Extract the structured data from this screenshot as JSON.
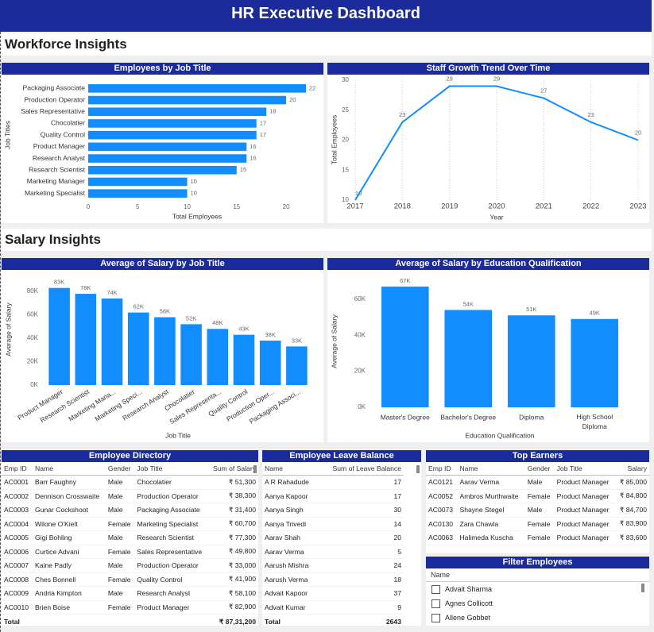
{
  "header": {
    "title": "HR Executive Dashboard"
  },
  "sections": [
    "Workforce Insights",
    "Salary Insights"
  ],
  "chart_data": [
    {
      "type": "bar",
      "orientation": "horizontal",
      "title": "Employees by Job Title",
      "categories": [
        "Packaging Associate",
        "Production Operator",
        "Sales Representative",
        "Chocolatier",
        "Quality Control",
        "Product Manager",
        "Research Analyst",
        "Research Scientist",
        "Marketing Manager",
        "Marketing Specialist"
      ],
      "values": [
        22,
        20,
        18,
        17,
        17,
        16,
        16,
        15,
        10,
        10
      ],
      "color": "#118dff",
      "xlim": [
        0,
        22
      ],
      "xticks": [
        0,
        5,
        10,
        15,
        20
      ],
      "xlabel": "Total Employees",
      "ylabel": "Job Titles"
    },
    {
      "type": "line",
      "title": "Staff Growth Trend Over Time",
      "x": [
        2017,
        2018,
        2019,
        2020,
        2021,
        2022,
        2023
      ],
      "values": [
        10,
        23,
        29,
        29,
        27,
        23,
        20
      ],
      "color": "#118dff",
      "xlim": [
        2017,
        2023
      ],
      "xticks": [
        2017,
        2018,
        2019,
        2020,
        2021,
        2022,
        2023
      ],
      "ylim": [
        10,
        30
      ],
      "yticks": [
        10,
        15,
        20,
        25,
        30
      ],
      "grid": true,
      "xlabel": "Year",
      "ylabel": "Total Employees"
    },
    {
      "type": "bar",
      "title": "Average of Salary by Job Title",
      "categories": [
        "Product Manager",
        "Research Scientist",
        "Marketing Mana...",
        "Marketing Speci...",
        "Research Analyst",
        "Chocolatier",
        "Sales Representa...",
        "Quality Control",
        "Production Oper...",
        "Packaging Associ..."
      ],
      "values": [
        83000,
        78000,
        74000,
        62000,
        58000,
        52000,
        48000,
        43000,
        38000,
        33000
      ],
      "value_labels": [
        "83K",
        "78K",
        "74K",
        "62K",
        "58K",
        "52K",
        "48K",
        "43K",
        "38K",
        "33K"
      ],
      "color": "#118dff",
      "ylim": [
        0,
        95000
      ],
      "yticks": [
        {
          "value": 0,
          "label": "0K"
        },
        {
          "value": 20000,
          "label": "20K"
        },
        {
          "value": 40000,
          "label": "40K"
        },
        {
          "value": 60000,
          "label": "60K"
        },
        {
          "value": 80000,
          "label": "80K"
        }
      ],
      "xlabel": "Job Title",
      "ylabel": "Average of Salary"
    },
    {
      "type": "bar",
      "title": "Average of Salary by Education Qualification",
      "categories": [
        "Master's Degree",
        "Bachelor's Degree",
        "Diploma",
        "High School Diploma"
      ],
      "values": [
        67000,
        54000,
        51000,
        49000
      ],
      "value_labels": [
        "67K",
        "54K",
        "51K",
        "49K"
      ],
      "color": "#118dff",
      "ylim": [
        0,
        74000
      ],
      "yticks": [
        {
          "value": 0,
          "label": "0K"
        },
        {
          "value": 20000,
          "label": "20K"
        },
        {
          "value": 40000,
          "label": "40K"
        },
        {
          "value": 60000,
          "label": "60K"
        }
      ],
      "xlabel": "Education Qualification",
      "ylabel": "Average of Salary"
    }
  ],
  "tables": [
    {
      "title": "Employee Directory",
      "columns": [
        "Emp ID",
        "Name",
        "Gender",
        "Job Title",
        "Sum of Salary"
      ],
      "rows": [
        [
          "AC0001",
          "Barr Faughny",
          "Male",
          "Chocolatier",
          "₹ 51,300"
        ],
        [
          "AC0002",
          "Dennison Crosswaite",
          "Male",
          "Production Operator",
          "₹ 38,300"
        ],
        [
          "AC0003",
          "Gunar Cockshoot",
          "Male",
          "Packaging Associate",
          "₹ 31,400"
        ],
        [
          "AC0004",
          "Wilone O'Kielt",
          "Female",
          "Marketing Specialist",
          "₹ 60,700"
        ],
        [
          "AC0005",
          "Gigi Bohling",
          "Male",
          "Research Scientist",
          "₹ 77,300"
        ],
        [
          "AC0006",
          "Curtice Advani",
          "Female",
          "Sales Representative",
          "₹ 49,800"
        ],
        [
          "AC0007",
          "Kaine Padly",
          "Male",
          "Production Operator",
          "₹ 33,000"
        ],
        [
          "AC0008",
          "Ches Bonnell",
          "Female",
          "Quality Control",
          "₹ 41,900"
        ],
        [
          "AC0009",
          "Andria Kimpton",
          "Male",
          "Research Analyst",
          "₹ 58,100"
        ],
        [
          "AC0010",
          "Brien Boise",
          "Female",
          "Product Manager",
          "₹ 82,900"
        ]
      ],
      "total": {
        "label": "Total",
        "value": "₹ 87,31,200"
      }
    },
    {
      "title": "Employee Leave Balance",
      "columns": [
        "Name",
        "Sum of Leave Balance"
      ],
      "rows": [
        [
          "A R Rahadude",
          17
        ],
        [
          "Aanya Kapoor",
          17
        ],
        [
          "Aanya Singh",
          30
        ],
        [
          "Aanya Trivedi",
          14
        ],
        [
          "Aarav Shah",
          20
        ],
        [
          "Aarav Verma",
          5
        ],
        [
          "Aarush Mishra",
          24
        ],
        [
          "Aarush Verma",
          18
        ],
        [
          "Advait Kapoor",
          37
        ],
        [
          "Advait Kumar",
          9
        ]
      ],
      "total": {
        "label": "Total",
        "value": 2643
      }
    },
    {
      "title": "Top Earners",
      "columns": [
        "Emp ID",
        "Name",
        "Gender",
        "Job Title",
        "Salary"
      ],
      "rows": [
        [
          "AC0121",
          "Aarav Verma",
          "Male",
          "Product Manager",
          "₹ 85,000"
        ],
        [
          "AC0052",
          "Ambros Murthwaite",
          "Female",
          "Product Manager",
          "₹ 84,800"
        ],
        [
          "AC0073",
          "Shayne Stegel",
          "Male",
          "Product Manager",
          "₹ 84,700"
        ],
        [
          "AC0130",
          "Zara Chawla",
          "Female",
          "Product Manager",
          "₹ 83,900"
        ],
        [
          "AC0063",
          "Halimeda Kuscha",
          "Female",
          "Product Manager",
          "₹ 83,600"
        ]
      ]
    }
  ],
  "filter": {
    "title": "Filter Employees",
    "field": "Name",
    "options": [
      "Advait Sharma",
      "Agnes Collicott",
      "Allene Gobbet"
    ]
  }
}
